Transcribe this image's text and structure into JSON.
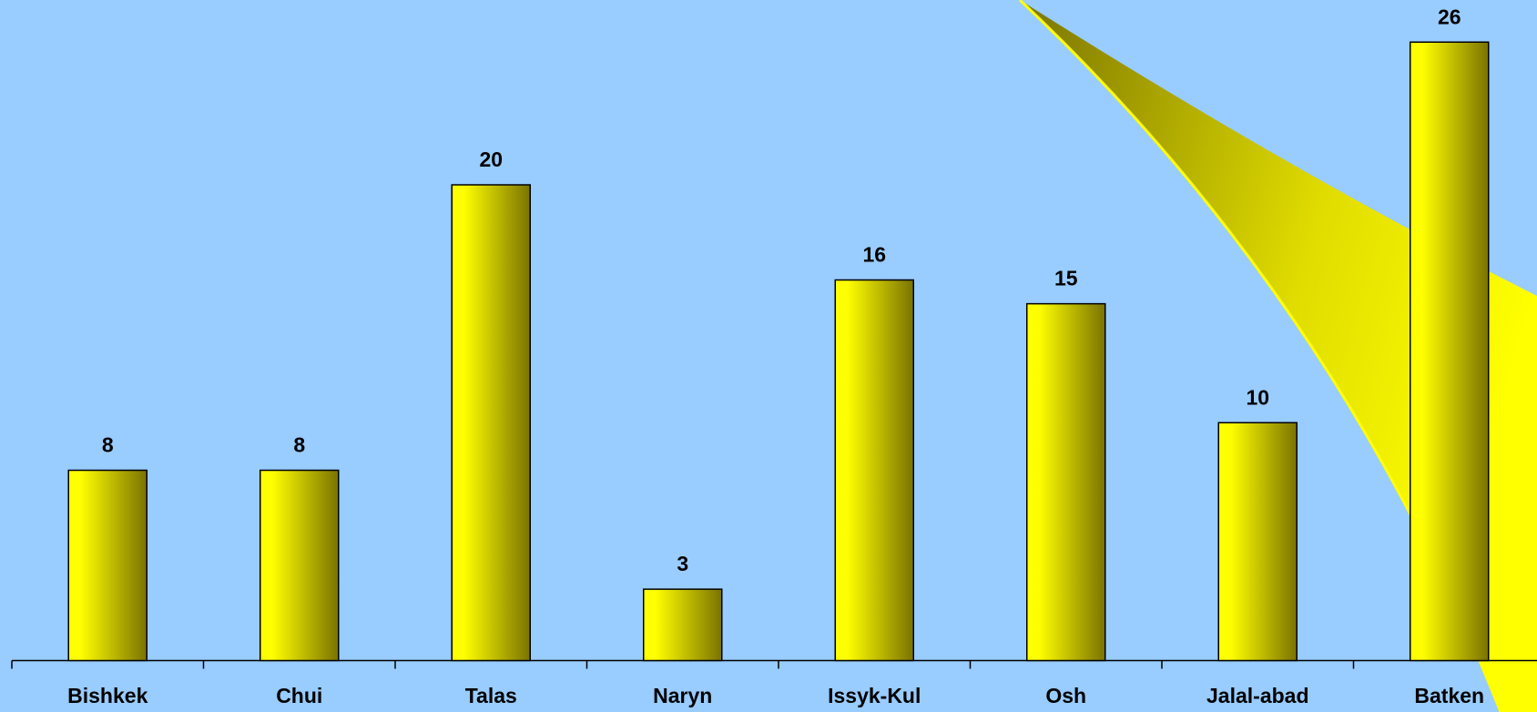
{
  "chart_data": {
    "type": "bar",
    "categories": [
      "Bishkek",
      "Chui",
      "Talas",
      "Naryn",
      "Issyk-Kul",
      "Osh",
      "Jalal-abad",
      "Batken"
    ],
    "values": [
      8,
      8,
      20,
      3,
      16,
      15,
      10,
      26
    ],
    "color": "#ffff00",
    "ylim": [
      0,
      28
    ]
  }
}
